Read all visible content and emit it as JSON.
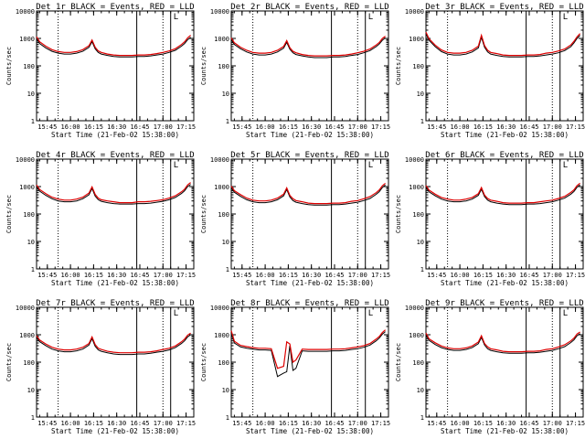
{
  "chart_data": {
    "type": "line",
    "layout": {
      "rows": 3,
      "cols": 3
    },
    "ylabel": "Counts/sec",
    "xlabel": "Start Time (21-Feb-02 15:38:00)",
    "y_scale": "log",
    "ylim": [
      1,
      10000
    ],
    "y_ticks": [
      1,
      10,
      100,
      1000,
      10000
    ],
    "y_tick_labels": [
      "1",
      "10",
      "100",
      "1000",
      "10000"
    ],
    "xlim": [
      "15:38",
      "17:20"
    ],
    "x_ticks": [
      "15:45",
      "16:00",
      "16:15",
      "16:30",
      "16:45",
      "17:00",
      "17:15"
    ],
    "x_tick_labels": [
      "15:45",
      "16:00",
      "16:15",
      "16:30",
      "16:45",
      "17:00",
      "17:15"
    ],
    "dotted_markers": [
      "15:52",
      "17:00"
    ],
    "solid_markers": [
      "16:43",
      "17:05"
    ],
    "corner_bracket_label": "L",
    "series_colors": {
      "events": "#000000",
      "lld": "#dd0000"
    },
    "x": [
      "15:38",
      "15:40",
      "15:44",
      "15:48",
      "15:52",
      "15:56",
      "16:00",
      "16:04",
      "16:08",
      "16:12",
      "16:14",
      "16:16",
      "16:18",
      "16:20",
      "16:24",
      "16:28",
      "16:32",
      "16:36",
      "16:40",
      "16:44",
      "16:48",
      "16:52",
      "16:56",
      "17:00",
      "17:04",
      "17:08",
      "17:12",
      "17:14",
      "17:16",
      "17:18"
    ],
    "panels": [
      {
        "title": "Det 1r BLACK = Events, RED = LLD",
        "series": [
          {
            "values": [
              1000,
              650,
              450,
              340,
              290,
              270,
              270,
              290,
              340,
              470,
              760,
              420,
              310,
              270,
              240,
              220,
              210,
              210,
              210,
              220,
              220,
              230,
              250,
              270,
              310,
              370,
              520,
              650,
              900,
              1100
            ]
          },
          {
            "values": [
              1150,
              750,
              520,
              390,
              330,
              310,
              310,
              330,
              390,
              540,
              880,
              480,
              350,
              310,
              270,
              250,
              240,
              240,
              240,
              250,
              250,
              260,
              280,
              310,
              350,
              420,
              600,
              750,
              1050,
              1300
            ]
          }
        ]
      },
      {
        "title": "Det 2r BLACK = Events, RED = LLD",
        "series": [
          {
            "values": [
              900,
              600,
              420,
              320,
              270,
              250,
              250,
              270,
              320,
              440,
              720,
              400,
              300,
              260,
              230,
              210,
              200,
              200,
              200,
              210,
              210,
              220,
              240,
              260,
              300,
              360,
              500,
              620,
              860,
              1050
            ]
          },
          {
            "values": [
              1050,
              690,
              480,
              370,
              310,
              290,
              290,
              310,
              370,
              510,
              830,
              460,
              340,
              300,
              260,
              240,
              230,
              230,
              230,
              240,
              240,
              250,
              270,
              300,
              340,
              410,
              570,
              710,
              990,
              1200
            ]
          }
        ]
      },
      {
        "title": "Det 3r BLACK = Events, RED = LLD",
        "series": [
          {
            "values": [
              1500,
              850,
              500,
              330,
              270,
              250,
              250,
              270,
              320,
              450,
              1100,
              480,
              320,
              270,
              240,
              220,
              210,
              210,
              210,
              220,
              220,
              230,
              250,
              270,
              300,
              360,
              500,
              680,
              1000,
              1300
            ]
          },
          {
            "values": [
              1700,
              970,
              570,
              380,
              310,
              290,
              290,
              310,
              370,
              520,
              1300,
              550,
              370,
              310,
              280,
              250,
              240,
              240,
              240,
              250,
              250,
              260,
              290,
              310,
              350,
              410,
              580,
              780,
              1150,
              1500
            ]
          }
        ]
      },
      {
        "title": "Det 4r BLACK = Events, RED = LLD",
        "series": [
          {
            "values": [
              1000,
              680,
              480,
              360,
              300,
              280,
              280,
              300,
              360,
              500,
              850,
              450,
              330,
              290,
              260,
              240,
              230,
              230,
              230,
              240,
              240,
              250,
              270,
              290,
              330,
              400,
              560,
              700,
              1000,
              1200
            ]
          },
          {
            "values": [
              1150,
              780,
              550,
              410,
              350,
              320,
              320,
              350,
              410,
              580,
              980,
              520,
              380,
              330,
              300,
              280,
              260,
              260,
              260,
              280,
              280,
              290,
              310,
              330,
              380,
              460,
              640,
              800,
              1150,
              1400
            ]
          }
        ]
      },
      {
        "title": "Det 5r BLACK = Events, RED = LLD",
        "series": [
          {
            "values": [
              900,
              620,
              440,
              330,
              280,
              260,
              260,
              280,
              330,
              460,
              780,
              420,
              310,
              270,
              240,
              220,
              210,
              210,
              210,
              220,
              220,
              230,
              250,
              270,
              310,
              370,
              520,
              650,
              920,
              1150
            ]
          },
          {
            "values": [
              1040,
              710,
              510,
              380,
              320,
              300,
              300,
              320,
              380,
              530,
              900,
              480,
              360,
              310,
              280,
              250,
              240,
              240,
              240,
              250,
              250,
              260,
              290,
              310,
              360,
              430,
              600,
              750,
              1060,
              1320
            ]
          }
        ]
      },
      {
        "title": "Det 6r BLACK = Events, RED = LLD",
        "series": [
          {
            "values": [
              950,
              640,
              460,
              350,
              300,
              280,
              280,
              300,
              350,
              480,
              800,
              430,
              320,
              280,
              250,
              230,
              220,
              220,
              220,
              230,
              230,
              240,
              260,
              280,
              320,
              380,
              530,
              660,
              950,
              1150
            ]
          },
          {
            "values": [
              1100,
              740,
              530,
              400,
              350,
              320,
              320,
              350,
              400,
              550,
              920,
              490,
              370,
              320,
              290,
              260,
              250,
              250,
              250,
              260,
              260,
              280,
              300,
              320,
              370,
              440,
              610,
              760,
              1090,
              1320
            ]
          }
        ]
      },
      {
        "title": "Det 7r BLACK = Events, RED = LLD",
        "series": [
          {
            "values": [
              800,
              560,
              400,
              300,
              260,
              240,
              240,
              260,
              300,
              420,
              720,
              380,
              280,
              250,
              220,
              200,
              190,
              190,
              190,
              200,
              200,
              210,
              230,
              250,
              280,
              340,
              480,
              600,
              840,
              1000
            ]
          },
          {
            "values": [
              920,
              640,
              460,
              350,
              300,
              280,
              280,
              300,
              350,
              480,
              830,
              440,
              320,
              290,
              250,
              230,
              220,
              220,
              220,
              230,
              230,
              240,
              260,
              290,
              320,
              390,
              550,
              690,
              970,
              1150
            ]
          }
        ]
      },
      {
        "title": "Det 8r BLACK = Events, RED = LLD",
        "series": [
          {
            "values": [
              1200,
              500,
              360,
              320,
              300,
              280,
              280,
              270,
              30,
              40,
              45,
              400,
              50,
              60,
              260,
              250,
              250,
              250,
              250,
              260,
              260,
              270,
              290,
              310,
              350,
              420,
              600,
              750,
              1050,
              1300
            ]
          },
          {
            "values": [
              1400,
              580,
              410,
              370,
              340,
              320,
              320,
              310,
              60,
              70,
              550,
              460,
              100,
              120,
              300,
              290,
              290,
              290,
              290,
              300,
              300,
              310,
              330,
              360,
              400,
              480,
              690,
              860,
              1200,
              1500
            ]
          }
        ]
      },
      {
        "title": "Det 9r BLACK = Events, RED = LLD",
        "series": [
          {
            "values": [
              1000,
              620,
              440,
              340,
              290,
              270,
              270,
              290,
              340,
              470,
              800,
              420,
              310,
              270,
              240,
              220,
              210,
              210,
              210,
              220,
              220,
              230,
              250,
              270,
              310,
              370,
              520,
              650,
              920,
              1100
            ]
          },
          {
            "values": [
              1150,
              710,
              510,
              390,
              330,
              310,
              310,
              330,
              390,
              540,
              920,
              480,
              360,
              310,
              280,
              250,
              240,
              240,
              240,
              250,
              250,
              260,
              290,
              310,
              360,
              430,
              600,
              750,
              1060,
              1260
            ]
          }
        ]
      }
    ]
  }
}
